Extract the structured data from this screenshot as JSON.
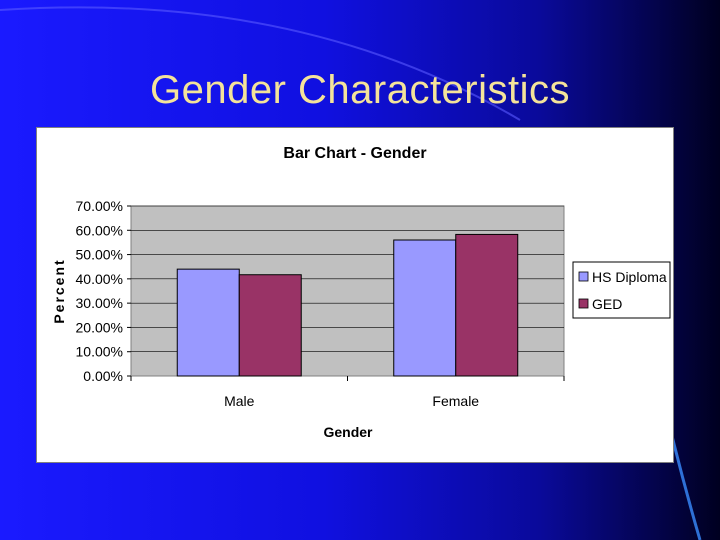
{
  "slide": {
    "title": "Gender Characteristics"
  },
  "colors": {
    "plot_bg": "#c0c0c0",
    "hs_diploma": "#9999ff",
    "ged": "#993366"
  },
  "chart_data": {
    "type": "bar",
    "title": "Bar Chart - Gender",
    "xlabel": "Gender",
    "ylabel": "Percent",
    "categories": [
      "Male",
      "Female"
    ],
    "series": [
      {
        "name": "HS Diploma",
        "values": [
          44.0,
          56.0
        ]
      },
      {
        "name": "GED",
        "values": [
          41.7,
          58.3
        ]
      }
    ],
    "ylim": [
      0,
      70
    ],
    "yticks": [
      "0.00%",
      "10.00%",
      "20.00%",
      "30.00%",
      "40.00%",
      "50.00%",
      "60.00%",
      "70.00%"
    ],
    "grid": true,
    "legend": "right"
  }
}
